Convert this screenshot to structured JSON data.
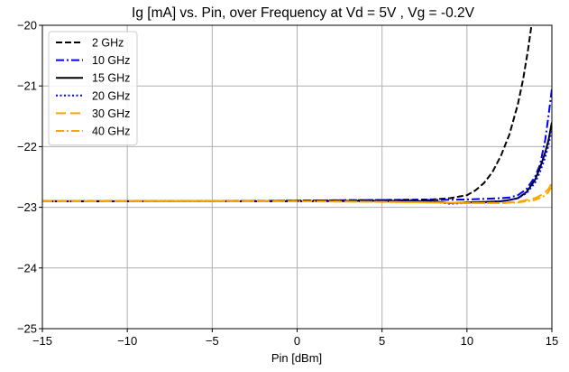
{
  "chart_data": {
    "type": "line",
    "title": "Ig [mA] vs. Pin, over Frequency at Vd = 5V , Vg = -0.2V",
    "xlabel": "Pin [dBm]",
    "ylabel": "",
    "xlim": [
      -15,
      15
    ],
    "ylim": [
      -25,
      -20
    ],
    "xticks": [
      -15,
      -10,
      -5,
      0,
      5,
      10,
      15
    ],
    "xtick_labels": [
      "−15",
      "−10",
      "−5",
      "0",
      "5",
      "10",
      "15"
    ],
    "yticks": [
      -25,
      -24,
      -23,
      -22,
      -21,
      -20
    ],
    "ytick_labels": [
      "−25",
      "−24",
      "−23",
      "−22",
      "−21",
      "−20"
    ],
    "grid": true,
    "legend_position": "top-left",
    "series": [
      {
        "name": "2 GHz",
        "color": "#000000",
        "dash": "dashed",
        "x": [
          -15,
          -10,
          -5,
          0,
          5,
          8,
          9,
          10,
          10.5,
          11,
          11.5,
          12,
          12.5,
          13,
          13.3,
          13.6,
          13.8
        ],
        "y": [
          -22.9,
          -22.9,
          -22.9,
          -22.89,
          -22.88,
          -22.87,
          -22.85,
          -22.8,
          -22.72,
          -22.6,
          -22.42,
          -22.15,
          -21.8,
          -21.3,
          -20.9,
          -20.4,
          -20.0
        ]
      },
      {
        "name": "10 GHz",
        "color": "#0000ff",
        "dash": "dashdot",
        "x": [
          -15,
          -10,
          -5,
          0,
          5,
          8,
          10,
          11,
          12,
          12.5,
          13,
          13.5,
          14,
          14.3,
          14.6,
          14.8,
          15
        ],
        "y": [
          -22.9,
          -22.9,
          -22.9,
          -22.89,
          -22.88,
          -22.88,
          -22.87,
          -22.86,
          -22.85,
          -22.84,
          -22.8,
          -22.7,
          -22.5,
          -22.3,
          -21.9,
          -21.5,
          -21.05
        ]
      },
      {
        "name": "15 GHz",
        "color": "#000000",
        "dash": "solid",
        "x": [
          -15,
          -10,
          -5,
          0,
          5,
          8,
          9,
          10,
          11,
          12,
          12.5,
          13,
          13.5,
          14,
          14.3,
          14.6,
          14.8,
          15
        ],
        "y": [
          -22.9,
          -22.9,
          -22.9,
          -22.9,
          -22.89,
          -22.9,
          -22.93,
          -22.92,
          -22.91,
          -22.9,
          -22.88,
          -22.85,
          -22.75,
          -22.55,
          -22.35,
          -22.1,
          -21.9,
          -21.6
        ]
      },
      {
        "name": "20 GHz",
        "color": "#0000ff",
        "dash": "dotted",
        "x": [
          -15,
          -10,
          -5,
          0,
          5,
          8,
          9,
          10,
          11,
          12,
          12.5,
          13,
          13.5,
          14,
          14.3,
          14.6,
          14.8,
          15
        ],
        "y": [
          -22.9,
          -22.9,
          -22.9,
          -22.9,
          -22.9,
          -22.91,
          -22.94,
          -22.93,
          -22.92,
          -22.9,
          -22.88,
          -22.85,
          -22.77,
          -22.6,
          -22.42,
          -22.18,
          -21.98,
          -21.7
        ]
      },
      {
        "name": "30 GHz",
        "color": "#ffa500",
        "dash": "longdash",
        "x": [
          -15,
          -10,
          -5,
          0,
          5,
          8,
          10,
          12,
          13,
          14,
          14.5,
          14.8,
          15
        ],
        "y": [
          -22.9,
          -22.9,
          -22.9,
          -22.9,
          -22.91,
          -22.92,
          -22.93,
          -22.93,
          -22.91,
          -22.85,
          -22.78,
          -22.7,
          -22.6
        ]
      },
      {
        "name": "40 GHz",
        "color": "#ffa500",
        "dash": "dashdot",
        "x": [
          -15,
          -10,
          -5,
          0,
          5,
          8,
          10,
          12,
          13,
          14,
          14.5,
          14.8,
          15
        ],
        "y": [
          -22.9,
          -22.9,
          -22.9,
          -22.9,
          -22.91,
          -22.92,
          -22.93,
          -22.93,
          -22.92,
          -22.88,
          -22.82,
          -22.75,
          -22.65
        ]
      }
    ]
  }
}
